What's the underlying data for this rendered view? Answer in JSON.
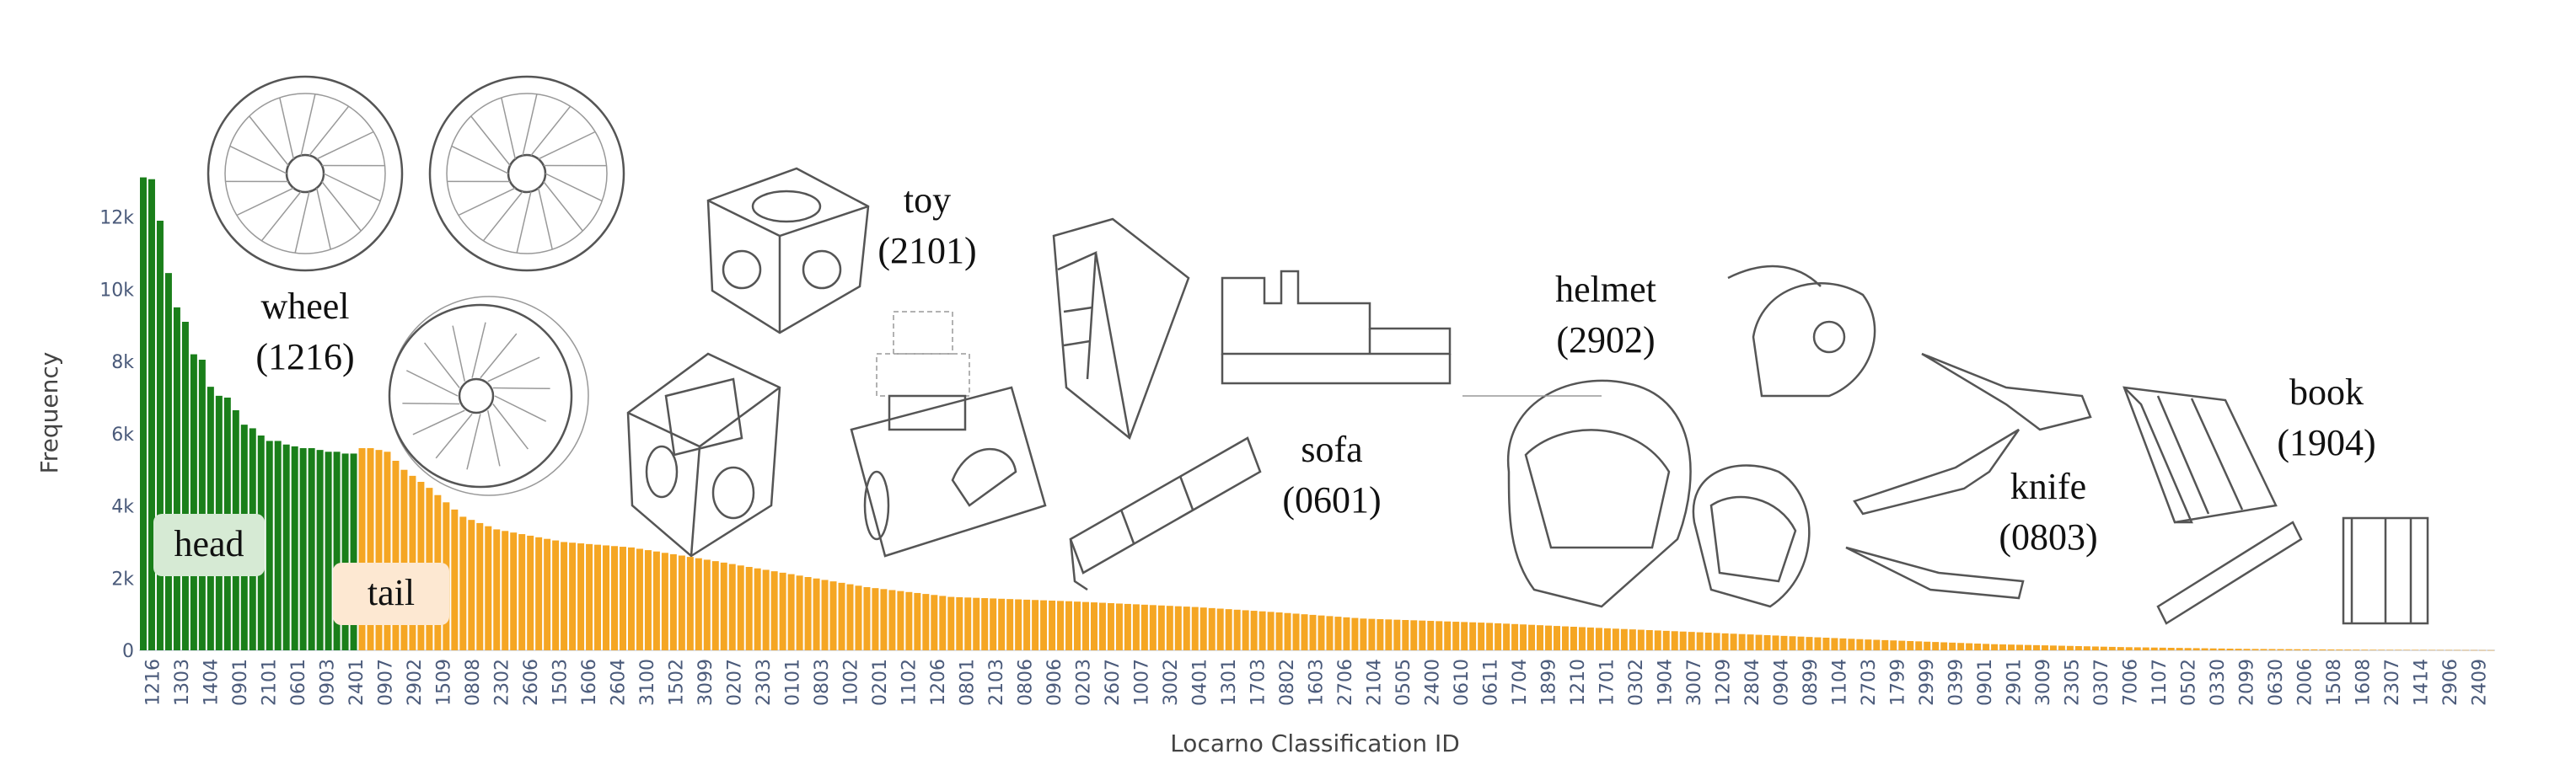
{
  "chart_data": {
    "type": "bar",
    "xlabel": "Locarno Classification ID",
    "ylabel": "Frequency",
    "ylim": [
      0,
      14000
    ],
    "y_ticks": [
      0,
      2000,
      4000,
      6000,
      8000,
      10000,
      12000
    ],
    "y_tick_labels": [
      "0",
      "2k",
      "4k",
      "6k",
      "8k",
      "10k",
      "12k"
    ],
    "x_tick_labels": [
      "1216",
      "1303",
      "1404",
      "0901",
      "2101",
      "0601",
      "0903",
      "2401",
      "0907",
      "2902",
      "1509",
      "0808",
      "2302",
      "2606",
      "1503",
      "1606",
      "2604",
      "3100",
      "1502",
      "3099",
      "0207",
      "2303",
      "0101",
      "0803",
      "1002",
      "0201",
      "1102",
      "1206",
      "0801",
      "2103",
      "0806",
      "0906",
      "0203",
      "2607",
      "1007",
      "3002",
      "0401",
      "1301",
      "1703",
      "0802",
      "1603",
      "2706",
      "2104",
      "0505",
      "2400",
      "0610",
      "0611",
      "1704",
      "1899",
      "1210",
      "1701",
      "0302",
      "1904",
      "3007",
      "1209",
      "2804",
      "0904",
      "0899",
      "1104",
      "2703",
      "1799",
      "2999",
      "0399",
      "0901",
      "2901",
      "3009",
      "2305",
      "0307",
      "7006",
      "1107",
      "0502",
      "0330",
      "2099",
      "0630",
      "2006",
      "1508",
      "1608",
      "2307",
      "1414",
      "2906",
      "2409"
    ],
    "bar_count": 280,
    "head_count": 26,
    "values_head": [
      13100,
      13050,
      11900,
      10450,
      9500,
      9100,
      8200,
      8050,
      7300,
      7050,
      7000,
      6650,
      6250,
      6150,
      5950,
      5800,
      5800,
      5700,
      5650,
      5600,
      5600,
      5550,
      5500,
      5500,
      5450,
      5450
    ],
    "tail_profile": [
      [
        27,
        5600
      ],
      [
        29,
        5500
      ],
      [
        31,
        5000
      ],
      [
        34,
        4500
      ],
      [
        38,
        3700
      ],
      [
        42,
        3350
      ],
      [
        50,
        3000
      ],
      [
        58,
        2850
      ],
      [
        66,
        2550
      ],
      [
        76,
        2150
      ],
      [
        86,
        1750
      ],
      [
        96,
        1480
      ],
      [
        110,
        1360
      ],
      [
        125,
        1200
      ],
      [
        135,
        1050
      ],
      [
        145,
        880
      ],
      [
        160,
        760
      ],
      [
        175,
        600
      ],
      [
        190,
        450
      ],
      [
        205,
        300
      ],
      [
        220,
        170
      ],
      [
        235,
        90
      ],
      [
        250,
        40
      ],
      [
        265,
        15
      ],
      [
        279,
        5
      ]
    ],
    "groups": [
      {
        "name": "head",
        "color": "#1a7f1a",
        "box_color": "#d6ead4"
      },
      {
        "name": "tail",
        "color": "#f5a623",
        "box_color": "#fde8d2"
      }
    ],
    "annotations": [
      {
        "text": "wheel",
        "code": "(1216)"
      },
      {
        "text": "toy",
        "code": "(2101)"
      },
      {
        "text": "sofa",
        "code": "(0601)"
      },
      {
        "text": "helmet",
        "code": "(2902)"
      },
      {
        "text": "knife",
        "code": "(0803)"
      },
      {
        "text": "book",
        "code": "(1904)"
      }
    ]
  }
}
